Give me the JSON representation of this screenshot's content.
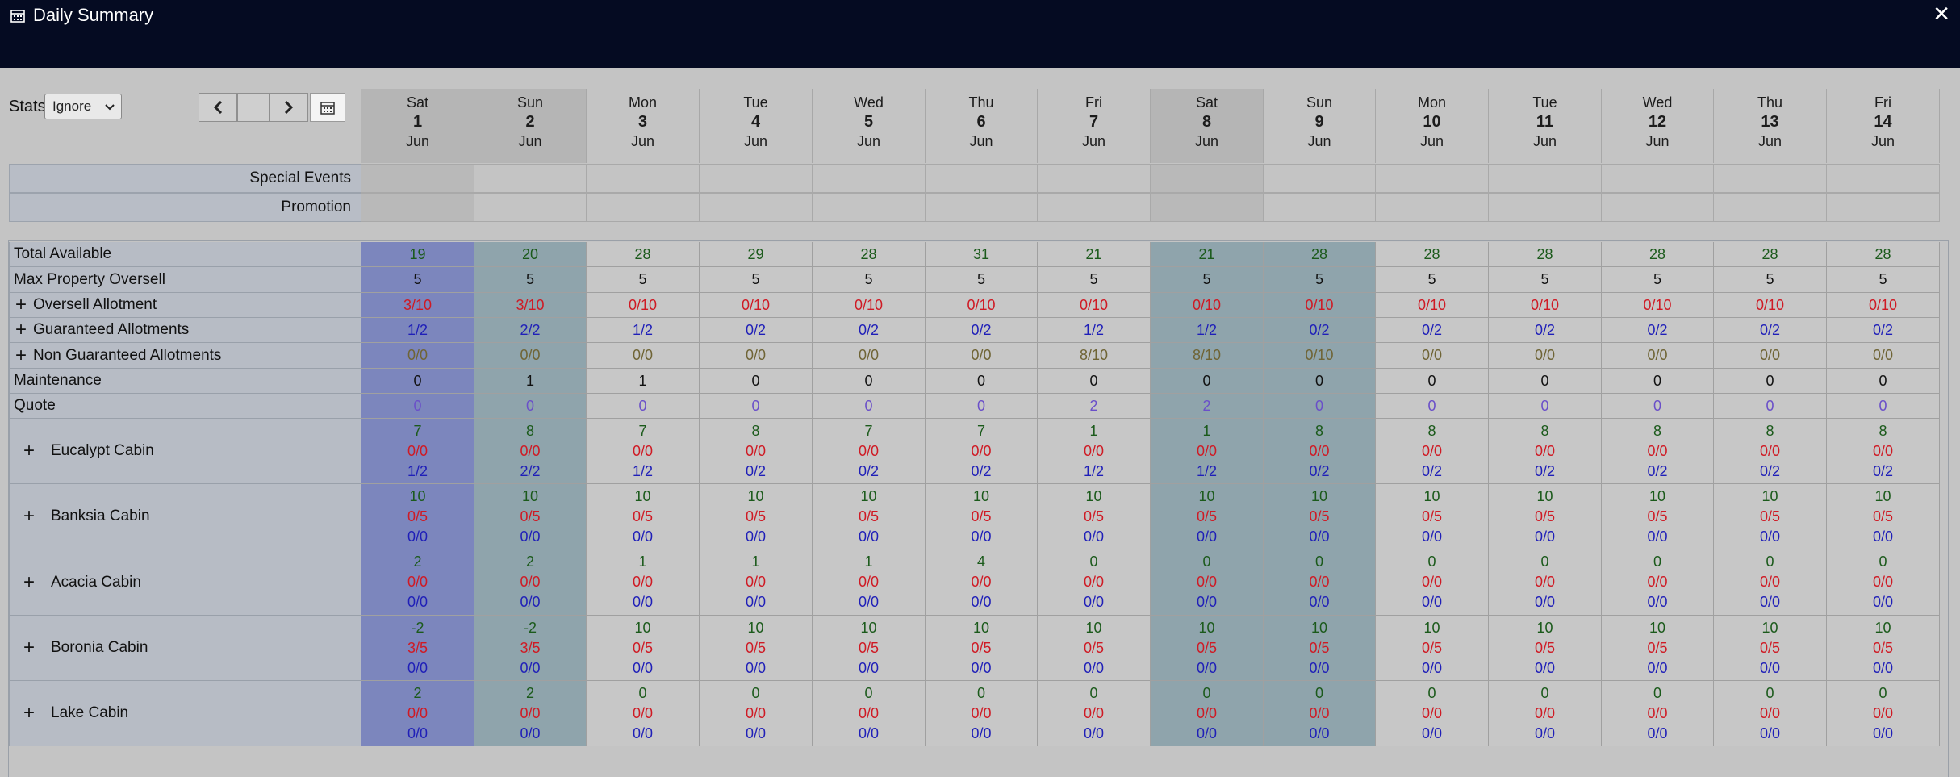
{
  "window": {
    "title": "Daily Summary",
    "close_label": "✕"
  },
  "toolbar": {
    "stats_label": "Stats",
    "stats_value": "Ignore"
  },
  "days": [
    {
      "dow": "Sat",
      "num": "1",
      "mon": "Jun",
      "kind": "sel"
    },
    {
      "dow": "Sun",
      "num": "2",
      "mon": "Jun",
      "kind": "wkd"
    },
    {
      "dow": "Mon",
      "num": "3",
      "mon": "Jun",
      "kind": "norm"
    },
    {
      "dow": "Tue",
      "num": "4",
      "mon": "Jun",
      "kind": "norm"
    },
    {
      "dow": "Wed",
      "num": "5",
      "mon": "Jun",
      "kind": "norm"
    },
    {
      "dow": "Thu",
      "num": "6",
      "mon": "Jun",
      "kind": "norm"
    },
    {
      "dow": "Fri",
      "num": "7",
      "mon": "Jun",
      "kind": "norm"
    },
    {
      "dow": "Sat",
      "num": "8",
      "mon": "Jun",
      "kind": "wkd"
    },
    {
      "dow": "Sun",
      "num": "9",
      "mon": "Jun",
      "kind": "wkd"
    },
    {
      "dow": "Mon",
      "num": "10",
      "mon": "Jun",
      "kind": "norm"
    },
    {
      "dow": "Tue",
      "num": "11",
      "mon": "Jun",
      "kind": "norm"
    },
    {
      "dow": "Wed",
      "num": "12",
      "mon": "Jun",
      "kind": "norm"
    },
    {
      "dow": "Thu",
      "num": "13",
      "mon": "Jun",
      "kind": "norm"
    },
    {
      "dow": "Fri",
      "num": "14",
      "mon": "Jun",
      "kind": "norm"
    }
  ],
  "events": [
    {
      "label": "Special Events"
    },
    {
      "label": "Promotion"
    }
  ],
  "summary_rows": [
    {
      "label": "Total Available",
      "expand": false,
      "color": "green",
      "values": [
        "19",
        "20",
        "28",
        "29",
        "28",
        "31",
        "21",
        "21",
        "28",
        "28",
        "28",
        "28",
        "28",
        "28"
      ]
    },
    {
      "label": "Max Property Oversell",
      "expand": false,
      "color": "black",
      "values": [
        "5",
        "5",
        "5",
        "5",
        "5",
        "5",
        "5",
        "5",
        "5",
        "5",
        "5",
        "5",
        "5",
        "5"
      ]
    },
    {
      "label": "Oversell Allotment",
      "expand": true,
      "color": "red",
      "values": [
        "3/10",
        "3/10",
        "0/10",
        "0/10",
        "0/10",
        "0/10",
        "0/10",
        "0/10",
        "0/10",
        "0/10",
        "0/10",
        "0/10",
        "0/10",
        "0/10"
      ]
    },
    {
      "label": "Guaranteed Allotments",
      "expand": true,
      "color": "blue",
      "values": [
        "1/2",
        "2/2",
        "1/2",
        "0/2",
        "0/2",
        "0/2",
        "1/2",
        "1/2",
        "0/2",
        "0/2",
        "0/2",
        "0/2",
        "0/2",
        "0/2"
      ]
    },
    {
      "label": "Non Guaranteed Allotments",
      "expand": true,
      "color": "olive",
      "values": [
        "0/0",
        "0/0",
        "0/0",
        "0/0",
        "0/0",
        "0/0",
        "8/10",
        "8/10",
        "0/10",
        "0/0",
        "0/0",
        "0/0",
        "0/0",
        "0/0"
      ]
    },
    {
      "label": "Maintenance",
      "expand": false,
      "color": "black",
      "values": [
        "0",
        "1",
        "1",
        "0",
        "0",
        "0",
        "0",
        "0",
        "0",
        "0",
        "0",
        "0",
        "0",
        "0"
      ]
    },
    {
      "label": "Quote",
      "expand": false,
      "color": "purple",
      "values": [
        "0",
        "0",
        "0",
        "0",
        "0",
        "0",
        "2",
        "2",
        "0",
        "0",
        "0",
        "0",
        "0",
        "0"
      ]
    }
  ],
  "room_rows": [
    {
      "label": "Eucalypt Cabin",
      "avail": [
        "7",
        "8",
        "7",
        "8",
        "7",
        "7",
        "1",
        "1",
        "8",
        "8",
        "8",
        "8",
        "8",
        "8"
      ],
      "oversell": [
        "0/0",
        "0/0",
        "0/0",
        "0/0",
        "0/0",
        "0/0",
        "0/0",
        "0/0",
        "0/0",
        "0/0",
        "0/0",
        "0/0",
        "0/0",
        "0/0"
      ],
      "allot": [
        "1/2",
        "2/2",
        "1/2",
        "0/2",
        "0/2",
        "0/2",
        "1/2",
        "1/2",
        "0/2",
        "0/2",
        "0/2",
        "0/2",
        "0/2",
        "0/2"
      ]
    },
    {
      "label": "Banksia Cabin",
      "avail": [
        "10",
        "10",
        "10",
        "10",
        "10",
        "10",
        "10",
        "10",
        "10",
        "10",
        "10",
        "10",
        "10",
        "10"
      ],
      "oversell": [
        "0/5",
        "0/5",
        "0/5",
        "0/5",
        "0/5",
        "0/5",
        "0/5",
        "0/5",
        "0/5",
        "0/5",
        "0/5",
        "0/5",
        "0/5",
        "0/5"
      ],
      "allot": [
        "0/0",
        "0/0",
        "0/0",
        "0/0",
        "0/0",
        "0/0",
        "0/0",
        "0/0",
        "0/0",
        "0/0",
        "0/0",
        "0/0",
        "0/0",
        "0/0"
      ]
    },
    {
      "label": "Acacia Cabin",
      "avail": [
        "2",
        "2",
        "1",
        "1",
        "1",
        "4",
        "0",
        "0",
        "0",
        "0",
        "0",
        "0",
        "0",
        "0"
      ],
      "oversell": [
        "0/0",
        "0/0",
        "0/0",
        "0/0",
        "0/0",
        "0/0",
        "0/0",
        "0/0",
        "0/0",
        "0/0",
        "0/0",
        "0/0",
        "0/0",
        "0/0"
      ],
      "allot": [
        "0/0",
        "0/0",
        "0/0",
        "0/0",
        "0/0",
        "0/0",
        "0/0",
        "0/0",
        "0/0",
        "0/0",
        "0/0",
        "0/0",
        "0/0",
        "0/0"
      ]
    },
    {
      "label": "Boronia Cabin",
      "avail": [
        "-2",
        "-2",
        "10",
        "10",
        "10",
        "10",
        "10",
        "10",
        "10",
        "10",
        "10",
        "10",
        "10",
        "10"
      ],
      "oversell": [
        "3/5",
        "3/5",
        "0/5",
        "0/5",
        "0/5",
        "0/5",
        "0/5",
        "0/5",
        "0/5",
        "0/5",
        "0/5",
        "0/5",
        "0/5",
        "0/5"
      ],
      "allot": [
        "0/0",
        "0/0",
        "0/0",
        "0/0",
        "0/0",
        "0/0",
        "0/0",
        "0/0",
        "0/0",
        "0/0",
        "0/0",
        "0/0",
        "0/0",
        "0/0"
      ]
    },
    {
      "label": "Lake Cabin",
      "avail": [
        "2",
        "2",
        "0",
        "0",
        "0",
        "0",
        "0",
        "0",
        "0",
        "0",
        "0",
        "0",
        "0",
        "0"
      ],
      "oversell": [
        "0/0",
        "0/0",
        "0/0",
        "0/0",
        "0/0",
        "0/0",
        "0/0",
        "0/0",
        "0/0",
        "0/0",
        "0/0",
        "0/0",
        "0/0",
        "0/0"
      ],
      "allot": [
        "0/0",
        "0/0",
        "0/0",
        "0/0",
        "0/0",
        "0/0",
        "0/0",
        "0/0",
        "0/0",
        "0/0",
        "0/0",
        "0/0",
        "0/0",
        "0/0"
      ]
    }
  ],
  "colors": {
    "titlebar": "#050b22",
    "selected_col": "#7c86bd",
    "weekend_col": "#8fa4ac",
    "available": "#1b5a1b",
    "oversell": "#cf1a24",
    "allotment": "#1f1fb8",
    "non_guaranteed": "#6f6435",
    "quote": "#6a4fc9"
  }
}
